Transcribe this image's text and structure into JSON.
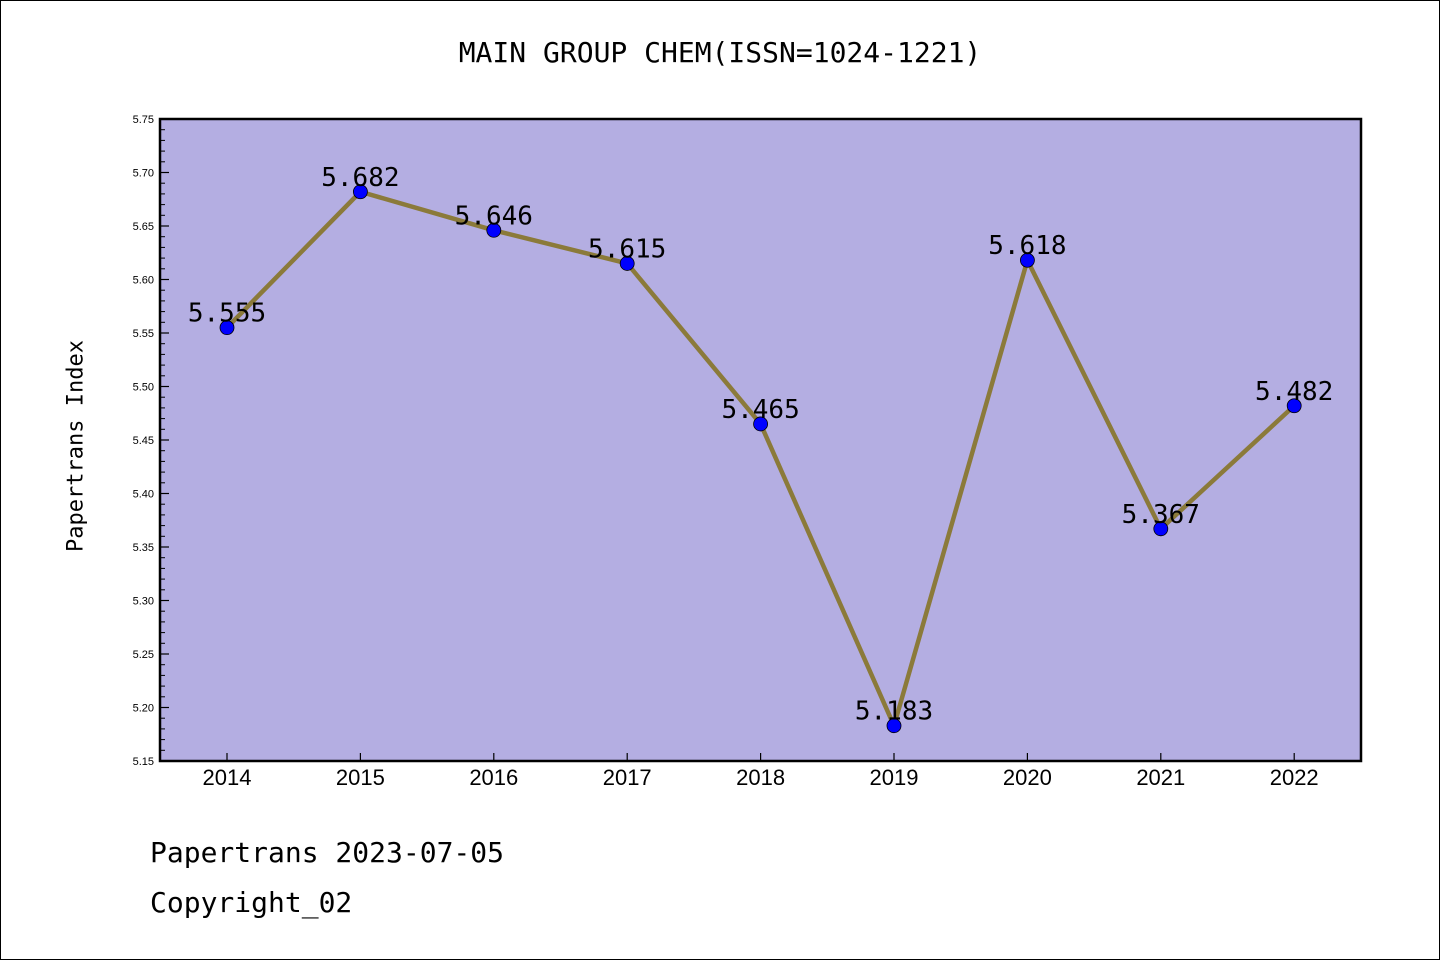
{
  "chart_data": {
    "type": "line",
    "title": "MAIN GROUP CHEM(ISSN=1024-1221)",
    "xlabel": "",
    "ylabel": "Papertrans Index",
    "categories": [
      "2014",
      "2015",
      "2016",
      "2017",
      "2018",
      "2019",
      "2020",
      "2021",
      "2022"
    ],
    "series": [
      {
        "values": [
          5.555,
          5.682,
          5.646,
          5.615,
          5.465,
          5.183,
          5.618,
          5.367,
          5.482
        ]
      }
    ],
    "data_labels": [
      "5.555",
      "5.682",
      "5.646",
      "5.615",
      "5.465",
      "5.183",
      "5.618",
      "5.367",
      "5.482"
    ],
    "ylim": [
      5.15,
      5.75
    ],
    "yticks": [
      "5.15",
      "5.20",
      "5.25",
      "5.30",
      "5.35",
      "5.40",
      "5.45",
      "5.50",
      "5.55",
      "5.60",
      "5.65",
      "5.70",
      "5.75"
    ],
    "grid": false,
    "legend": "none",
    "colors": {
      "plot_background": "#b4aee2",
      "line": "#8b7a3a",
      "marker": "#0000ff"
    }
  },
  "footer": {
    "date_text": "Papertrans 2023-07-05",
    "copyright_text": "Copyright_02"
  }
}
